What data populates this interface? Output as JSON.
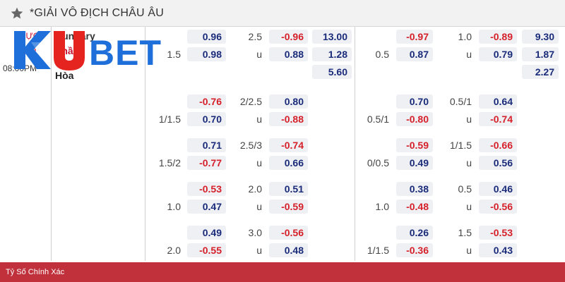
{
  "league": {
    "title": "*GIẢI VÔ ĐỊCH CHÂU ÂU",
    "star_icon": "star-icon"
  },
  "match": {
    "status_line1": "TRỰC",
    "status_line2": "TIẾP",
    "time": "08:00PM",
    "home": "Hungary",
    "away": "Phần",
    "draw": "Hòa"
  },
  "logo": {
    "text": "KUBET",
    "colors": {
      "k": "#1e6fd9",
      "u": "#e52420",
      "rest": "#1e6fd9"
    }
  },
  "colors": {
    "positive": "#1a2b7a",
    "negative": "#d6202a",
    "accent": "#c0313c"
  },
  "rows": [
    {
      "a1": "0.96",
      "a2": "0.98",
      "al": "1.5",
      "b1l": "2.5",
      "b1": "-0.96",
      "b2l": "u",
      "b2": "0.88",
      "x1": "13.00",
      "x2": "1.28",
      "x3": "5.60",
      "c1": "-0.97",
      "c2": "0.87",
      "cl": "0.5",
      "d1l": "1.0",
      "d1": "-0.89",
      "d2l": "u",
      "d2": "0.79",
      "y1": "9.30",
      "y2": "1.87",
      "y3": "2.27"
    },
    {
      "a1": "-0.76",
      "a2": "0.70",
      "al": "1/1.5",
      "b1l": "2/2.5",
      "b1": "0.80",
      "b2l": "u",
      "b2": "-0.88",
      "c1": "0.70",
      "c2": "-0.80",
      "cl": "0.5/1",
      "d1l": "0.5/1",
      "d1": "0.64",
      "d2l": "u",
      "d2": "-0.74"
    },
    {
      "a1": "0.71",
      "a2": "-0.77",
      "al": "1.5/2",
      "b1l": "2.5/3",
      "b1": "-0.74",
      "b2l": "u",
      "b2": "0.66",
      "c1": "-0.59",
      "c2": "0.49",
      "cl": "0/0.5",
      "d1l": "1/1.5",
      "d1": "-0.66",
      "d2l": "u",
      "d2": "0.56"
    },
    {
      "a1": "-0.53",
      "a2": "0.47",
      "al": "1.0",
      "b1l": "2.0",
      "b1": "0.51",
      "b2l": "u",
      "b2": "-0.59",
      "c1": "0.38",
      "c2": "-0.48",
      "cl": "1.0",
      "d1l": "0.5",
      "d1": "0.46",
      "d2l": "u",
      "d2": "-0.56"
    },
    {
      "a1": "0.49",
      "a2": "-0.55",
      "al": "2.0",
      "b1l": "3.0",
      "b1": "-0.56",
      "b2l": "u",
      "b2": "0.48",
      "c1": "0.26",
      "c2": "-0.36",
      "cl": "1/1.5",
      "d1l": "1.5",
      "d1": "-0.53",
      "d2l": "u",
      "d2": "0.43"
    }
  ],
  "footer": {
    "label": "Tỷ Số Chính Xác"
  }
}
